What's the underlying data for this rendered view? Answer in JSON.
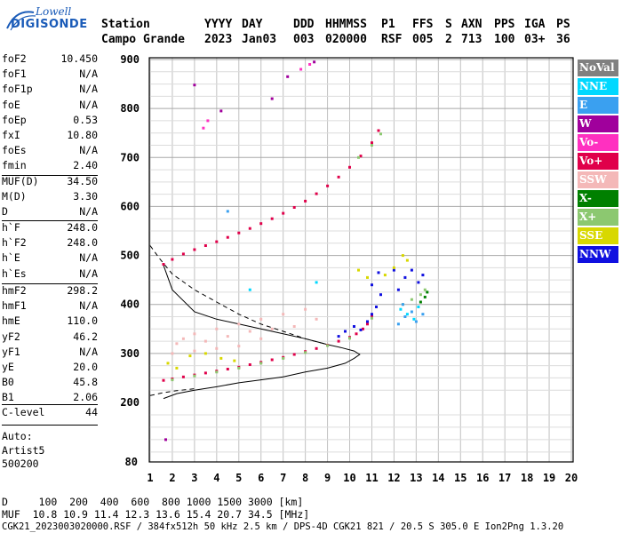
{
  "logo": {
    "top": "Lowell",
    "brand": "DIGISONDE"
  },
  "header": {
    "row1": [
      "Station",
      "YYYY",
      "DAY",
      "DDD",
      "HHMMSS",
      "P1",
      "FFS",
      "S",
      "AXN",
      "PPS",
      "IGA",
      "PS"
    ],
    "row2": [
      "Campo Grande",
      "2023",
      "Jan03",
      "003",
      "020000",
      "RSF",
      "005",
      "2",
      "713",
      "100",
      "03+",
      "36"
    ]
  },
  "params_group1": [
    {
      "label": "foF2",
      "value": "10.450"
    },
    {
      "label": "foF1",
      "value": "N/A"
    },
    {
      "label": "foF1p",
      "value": "N/A"
    },
    {
      "label": "foE",
      "value": "N/A"
    },
    {
      "label": "foEp",
      "value": "0.53"
    },
    {
      "label": "fxI",
      "value": "10.80"
    },
    {
      "label": "foEs",
      "value": "N/A"
    },
    {
      "label": "fmin",
      "value": "2.40"
    }
  ],
  "params_group2": [
    {
      "label": "MUF(D)",
      "value": "34.50"
    },
    {
      "label": "M(D)",
      "value": "3.30"
    },
    {
      "label": "D",
      "value": "N/A"
    }
  ],
  "params_group3": [
    {
      "label": "h`F",
      "value": "248.0"
    },
    {
      "label": "h`F2",
      "value": "248.0"
    },
    {
      "label": "h`E",
      "value": "N/A"
    },
    {
      "label": "h`Es",
      "value": "N/A"
    }
  ],
  "params_group4": [
    {
      "label": "hmF2",
      "value": "298.2"
    },
    {
      "label": "hmF1",
      "value": "N/A"
    },
    {
      "label": "hmE",
      "value": "110.0"
    },
    {
      "label": "yF2",
      "value": "46.2"
    },
    {
      "label": "yF1",
      "value": "N/A"
    },
    {
      "label": "yE",
      "value": "20.0"
    },
    {
      "label": "B0",
      "value": "45.8"
    },
    {
      "label": "B1",
      "value": "2.06"
    }
  ],
  "params_group5": [
    {
      "label": "C-level",
      "value": "44"
    }
  ],
  "auto": [
    "Auto:",
    "Artist5",
    "500200"
  ],
  "footer": {
    "line1": "D     100  200  400  600  800 1000 1500 3000 [km]",
    "line2": "MUF  10.8 10.9 11.4 12.3 13.6 15.4 20.7 34.5 [MHz]",
    "line3": "CGK21_2023003020000.RSF / 384fx512h 50 kHz 2.5 km / DPS-4D CGK21 821 / 20.5 S 305.0 E Ion2Png 1.3.20"
  },
  "legend": [
    {
      "label": "NoVal",
      "bg": "#808080",
      "fg": "#ffffff"
    },
    {
      "label": "NNE",
      "bg": "#00d8ff",
      "fg": "#ffffff"
    },
    {
      "label": "E",
      "bg": "#3aa0f0",
      "fg": "#ffffff"
    },
    {
      "label": "W",
      "bg": "#a0009c",
      "fg": "#ffffff"
    },
    {
      "label": "Vo-",
      "bg": "#ff30c0",
      "fg": "#ffffff"
    },
    {
      "label": "Vo+",
      "bg": "#e0004a",
      "fg": "#ffffff"
    },
    {
      "label": "SSW",
      "bg": "#f4b8b8",
      "fg": "#ffffff"
    },
    {
      "label": "X-",
      "bg": "#008000",
      "fg": "#ffffff"
    },
    {
      "label": "X+",
      "bg": "#8cc870",
      "fg": "#ffffff"
    },
    {
      "label": "SSE",
      "bg": "#d8d800",
      "fg": "#ffffff"
    },
    {
      "label": "NNW",
      "bg": "#1010e0",
      "fg": "#ffffff"
    }
  ],
  "chart_data": {
    "type": "scatter",
    "x_ticks": [
      "1",
      "2",
      "3",
      "4",
      "5",
      "6",
      "7",
      "8",
      "9",
      "10",
      "11",
      "12",
      "13",
      "14",
      "15",
      "16",
      "17",
      "18",
      "19",
      "20"
    ],
    "y_ticks": [
      "200",
      "300",
      "400",
      "500",
      "600",
      "700",
      "800",
      "900"
    ],
    "y_bottom_label": "80",
    "xlim": [
      1,
      20
    ],
    "ylim": [
      80,
      900
    ],
    "grid": true,
    "legend_position": "right",
    "series": [
      {
        "name": "Vo+",
        "color": "#e0004a",
        "points": [
          [
            1.6,
            245
          ],
          [
            2,
            248
          ],
          [
            2.5,
            252
          ],
          [
            3,
            256
          ],
          [
            3.5,
            260
          ],
          [
            4,
            264
          ],
          [
            4.5,
            268
          ],
          [
            5,
            272
          ],
          [
            5.5,
            277
          ],
          [
            6,
            282
          ],
          [
            6.5,
            287
          ],
          [
            7,
            292
          ],
          [
            7.5,
            298
          ],
          [
            8,
            304
          ],
          [
            8.5,
            310
          ],
          [
            9,
            317
          ],
          [
            9.5,
            325
          ],
          [
            10,
            333
          ],
          [
            10.3,
            340
          ],
          [
            10.6,
            350
          ],
          [
            10.8,
            360
          ],
          [
            11,
            375
          ],
          [
            1.6,
            482
          ],
          [
            2,
            492
          ],
          [
            2.5,
            503
          ],
          [
            3,
            512
          ],
          [
            3.5,
            520
          ],
          [
            4,
            528
          ],
          [
            4.5,
            537
          ],
          [
            5,
            546
          ],
          [
            5.5,
            555
          ],
          [
            6,
            565
          ],
          [
            6.5,
            575
          ],
          [
            7,
            586
          ],
          [
            7.5,
            598
          ],
          [
            8,
            611
          ],
          [
            8.5,
            626
          ],
          [
            9,
            642
          ],
          [
            9.5,
            660
          ],
          [
            10,
            680
          ],
          [
            10.5,
            703
          ],
          [
            11,
            730
          ],
          [
            11.3,
            755
          ]
        ]
      },
      {
        "name": "X+",
        "color": "#8cc870",
        "points": [
          [
            2,
            246
          ],
          [
            3,
            254
          ],
          [
            4,
            262
          ],
          [
            5,
            270
          ],
          [
            6,
            280
          ],
          [
            7,
            290
          ],
          [
            8,
            302
          ],
          [
            9,
            316
          ],
          [
            10,
            331
          ],
          [
            11,
            372
          ],
          [
            10.4,
            700
          ],
          [
            11,
            725
          ],
          [
            11.4,
            748
          ],
          [
            12.4,
            400
          ],
          [
            12.8,
            410
          ],
          [
            13.2,
            420
          ],
          [
            13.4,
            430
          ]
        ]
      },
      {
        "name": "X-",
        "color": "#008000",
        "points": [
          [
            13.2,
            405
          ],
          [
            13.4,
            415
          ],
          [
            13.5,
            425
          ]
        ]
      },
      {
        "name": "W",
        "color": "#a0009c",
        "points": [
          [
            3.0,
            848
          ],
          [
            4.2,
            795
          ],
          [
            8.4,
            895
          ],
          [
            6.5,
            820
          ],
          [
            1.7,
            125
          ],
          [
            7.2,
            865
          ]
        ]
      },
      {
        "name": "Vo-",
        "color": "#ff30c0",
        "points": [
          [
            3.4,
            760
          ],
          [
            3.6,
            775
          ],
          [
            7.8,
            880
          ],
          [
            8.2,
            890
          ]
        ]
      },
      {
        "name": "NNE",
        "color": "#00d8ff",
        "points": [
          [
            12.3,
            390
          ],
          [
            12.6,
            380
          ],
          [
            12.9,
            370
          ],
          [
            13.1,
            395
          ],
          [
            5.5,
            430
          ],
          [
            8.5,
            445
          ]
        ]
      },
      {
        "name": "E",
        "color": "#3aa0f0",
        "points": [
          [
            12.2,
            360
          ],
          [
            12.5,
            375
          ],
          [
            12.8,
            385
          ],
          [
            13.0,
            365
          ],
          [
            13.3,
            380
          ],
          [
            12.4,
            400
          ],
          [
            4.5,
            590
          ]
        ]
      },
      {
        "name": "NNW",
        "color": "#1010e0",
        "points": [
          [
            9.5,
            335
          ],
          [
            9.8,
            345
          ],
          [
            10.2,
            355
          ],
          [
            10.5,
            348
          ],
          [
            10.8,
            365
          ],
          [
            11.0,
            380
          ],
          [
            11.2,
            395
          ],
          [
            11.4,
            420
          ],
          [
            11.0,
            440
          ],
          [
            12.2,
            430
          ],
          [
            12.5,
            455
          ],
          [
            12.8,
            470
          ],
          [
            13.1,
            445
          ],
          [
            12.0,
            470
          ],
          [
            13.3,
            460
          ],
          [
            11.3,
            465
          ]
        ]
      },
      {
        "name": "SSW",
        "color": "#f4b8b8",
        "points": [
          [
            2.2,
            320
          ],
          [
            2.5,
            330
          ],
          [
            3,
            340
          ],
          [
            3.5,
            325
          ],
          [
            4,
            350
          ],
          [
            4.5,
            335
          ],
          [
            5,
            360
          ],
          [
            5.5,
            345
          ],
          [
            6,
            370
          ],
          [
            6.5,
            350
          ],
          [
            7,
            380
          ],
          [
            7.5,
            355
          ],
          [
            8,
            390
          ],
          [
            8.5,
            370
          ],
          [
            3,
            305
          ],
          [
            4,
            310
          ],
          [
            5,
            315
          ],
          [
            2,
            300
          ],
          [
            6,
            330
          ]
        ]
      },
      {
        "name": "SSE",
        "color": "#d8d800",
        "points": [
          [
            1.8,
            280
          ],
          [
            2.2,
            270
          ],
          [
            2.8,
            295
          ],
          [
            3.5,
            300
          ],
          [
            4.2,
            290
          ],
          [
            4.8,
            285
          ],
          [
            10.4,
            470
          ],
          [
            10.8,
            455
          ],
          [
            12.0,
            475
          ],
          [
            12.4,
            500
          ],
          [
            12.6,
            490
          ],
          [
            11.6,
            460
          ]
        ]
      }
    ],
    "curves": [
      {
        "name": "profile",
        "style": "solid",
        "points": [
          [
            1.6,
            208
          ],
          [
            2.2,
            218
          ],
          [
            3,
            225
          ],
          [
            4,
            232
          ],
          [
            5,
            240
          ],
          [
            6,
            246
          ],
          [
            7,
            252
          ],
          [
            8,
            262
          ],
          [
            9,
            270
          ],
          [
            9.8,
            280
          ],
          [
            10.2,
            290
          ],
          [
            10.45,
            298
          ],
          [
            10.2,
            305
          ],
          [
            9.6,
            312
          ],
          [
            9,
            318
          ],
          [
            8,
            330
          ],
          [
            7,
            340
          ],
          [
            6,
            350
          ],
          [
            5,
            360
          ],
          [
            4,
            370
          ],
          [
            3,
            385
          ],
          [
            2,
            430
          ],
          [
            1.6,
            480
          ]
        ]
      },
      {
        "name": "extrapolated-lower",
        "style": "dashed",
        "points": [
          [
            1,
            214
          ],
          [
            1.6,
            220
          ],
          [
            2.2,
            224
          ],
          [
            3,
            228
          ]
        ]
      },
      {
        "name": "extrapolated-upper",
        "style": "dashed",
        "points": [
          [
            1,
            520
          ],
          [
            1.4,
            495
          ],
          [
            2,
            462
          ],
          [
            3,
            430
          ],
          [
            4,
            405
          ],
          [
            5,
            380
          ],
          [
            6,
            360
          ],
          [
            7,
            345
          ],
          [
            8,
            330
          ],
          [
            9,
            318
          ]
        ]
      }
    ]
  }
}
